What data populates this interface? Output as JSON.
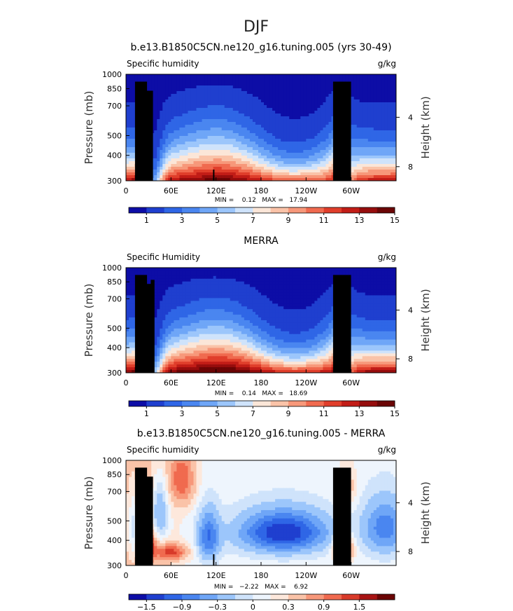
{
  "figure": {
    "title": "DJF"
  },
  "chart_data": [
    {
      "type": "heatmap",
      "title": "b.e13.B1850C5CN.ne120_g16.tuning.005 (yrs 30-49)",
      "left_label": "Specific humidity",
      "right_label": "g/kg",
      "ylabel": "Pressure (mb)",
      "ylabel_right": "Height (km)",
      "ylim": [
        1000,
        300
      ],
      "y_ticks": [
        "300",
        "400",
        "500",
        "700",
        "850",
        "1000"
      ],
      "y_right_ticks": [
        "8",
        "4"
      ],
      "x_ticks": [
        "0",
        "60E",
        "120E",
        "180",
        "120W",
        "60W"
      ],
      "xlim": [
        0,
        360
      ],
      "stats": "MIN =    0.12   MAX =   17.94",
      "colorbar_labels": [
        "1",
        "3",
        "5",
        "7",
        "9",
        "11",
        "13",
        "15"
      ],
      "colorbar_colors": [
        "#0d0da6",
        "#1f3fcf",
        "#2f66e6",
        "#4a86f0",
        "#6fa6f7",
        "#9cc6fb",
        "#cfe3fb",
        "#fbe6d8",
        "#fac3a8",
        "#f7987a",
        "#f06a4f",
        "#e03e2b",
        "#c21d17",
        "#960d0d",
        "#6b0505"
      ],
      "field": "model"
    },
    {
      "type": "heatmap",
      "title": "MERRA",
      "left_label": "Specific Humidity",
      "right_label": "g/kg",
      "ylabel": "Pressure (mb)",
      "ylabel_right": "Height (km)",
      "ylim": [
        1000,
        300
      ],
      "y_ticks": [
        "300",
        "400",
        "500",
        "700",
        "850",
        "1000"
      ],
      "y_right_ticks": [
        "8",
        "4"
      ],
      "x_ticks": [
        "0",
        "60E",
        "120E",
        "180",
        "120W",
        "60W"
      ],
      "xlim": [
        0,
        360
      ],
      "stats": "MIN =    0.14   MAX =   18.69",
      "colorbar_labels": [
        "1",
        "3",
        "5",
        "7",
        "9",
        "11",
        "13",
        "15"
      ],
      "colorbar_colors": [
        "#0d0da6",
        "#1f3fcf",
        "#2f66e6",
        "#4a86f0",
        "#6fa6f7",
        "#9cc6fb",
        "#cfe3fb",
        "#fbe6d8",
        "#fac3a8",
        "#f7987a",
        "#f06a4f",
        "#e03e2b",
        "#c21d17",
        "#960d0d",
        "#6b0505"
      ],
      "field": "merra"
    },
    {
      "type": "heatmap",
      "title": "b.e13.B1850C5CN.ne120_g16.tuning.005 - MERRA",
      "left_label": "Specific humidity",
      "right_label": "g/kg",
      "ylabel": "Pressure (mb)",
      "ylabel_right": "Height (km)",
      "ylim": [
        1000,
        300
      ],
      "y_ticks": [
        "300",
        "400",
        "500",
        "700",
        "850",
        "1000"
      ],
      "y_right_ticks": [
        "8",
        "4"
      ],
      "x_ticks": [
        "0",
        "60E",
        "120E",
        "180",
        "120W",
        "60W"
      ],
      "xlim": [
        0,
        360
      ],
      "stats": "MIN =   −2.22   MAX =    6.92",
      "colorbar_labels": [
        "−1.5",
        "−0.9",
        "−0.3",
        "0",
        "0.3",
        "0.9",
        "1.5"
      ],
      "colorbar_colors": [
        "#0d0da6",
        "#1f3fcf",
        "#2f66e6",
        "#4a86f0",
        "#6fa6f7",
        "#9cc6fb",
        "#cfe3fb",
        "#eef5fd",
        "#fde8dc",
        "#fac3a8",
        "#f7987a",
        "#f06a4f",
        "#d83a2a",
        "#a81414",
        "#6b0505"
      ],
      "field": "diff"
    }
  ]
}
